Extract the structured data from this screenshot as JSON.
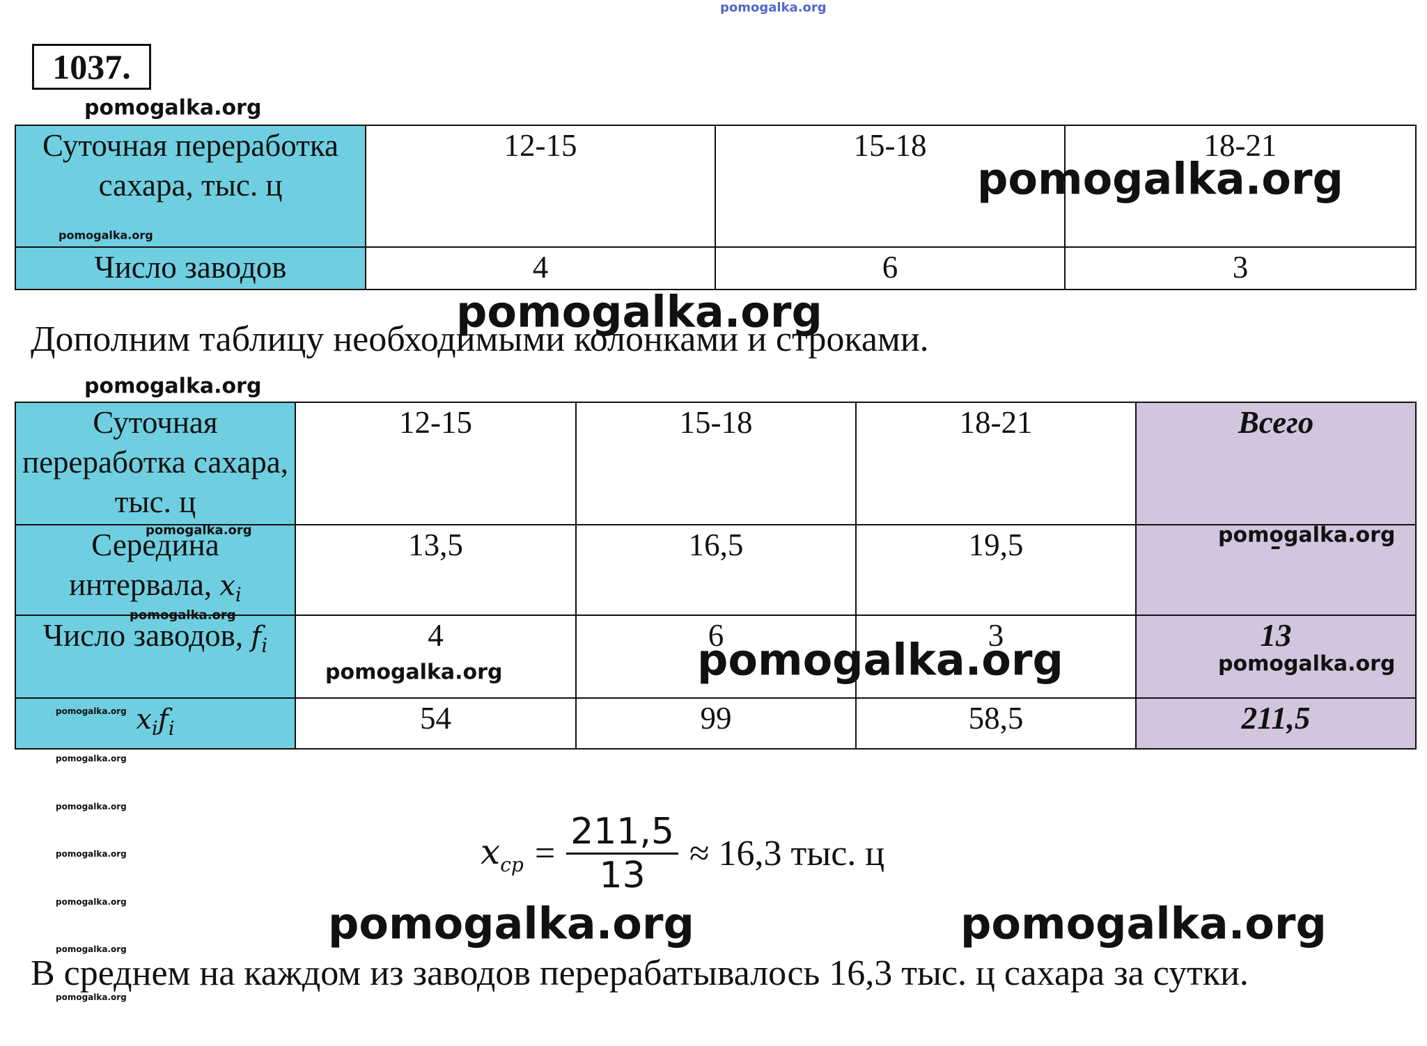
{
  "problem_number": "1037.",
  "table1": {
    "rows": [
      [
        {
          "text": "Суточная переработка сахара, тыс. ц"
        },
        "12-15",
        "15-18",
        "18-21"
      ],
      [
        {
          "text": "Число заводов"
        },
        "4",
        "6",
        "3"
      ]
    ]
  },
  "intro": "Дополним таблицу необходимыми колонками и строками.",
  "table2": {
    "rows": [
      [
        {
          "text": "Суточная переработка сахара, тыс. ц"
        },
        "12-15",
        "15-18",
        "18-21",
        "Всего"
      ],
      [
        {
          "text": "Середина интервала, ",
          "math": [
            [
              "x",
              "i"
            ]
          ]
        },
        "13,5",
        "16,5",
        "19,5",
        "-"
      ],
      [
        {
          "text": "Число заводов, ",
          "math": [
            [
              "f",
              "i"
            ]
          ]
        },
        "4",
        "6",
        "3",
        "13"
      ],
      [
        {
          "math": [
            [
              "x",
              "i"
            ],
            [
              "f",
              "i"
            ]
          ]
        },
        "54",
        "99",
        "58,5",
        "211,5"
      ]
    ]
  },
  "formula": {
    "var": "x",
    "sub": "ср",
    "eq": "=",
    "numerator": "211,5",
    "denominator": "13",
    "result": "≈ 16,3 тыс. ц"
  },
  "conclusion": "В среднем на каждом из заводов перерабатывалось 16,3 тыс. ц сахара за сутки.",
  "watermarks": [
    "pomogalka.org",
    "pomogalka.org",
    "pomogalka.org",
    "pomogalka.org",
    "pomogalka.org",
    "pomogalka.org",
    "pomogalka.org",
    "pomogalka.org",
    "pomogalka.org",
    "pomogalka.org",
    "pomogalka.org",
    "pomogalka.org",
    "pomogalka.org",
    "pomogalka.org",
    "pomogalka.org",
    "pomogalka.org",
    "pomogalka.org",
    "pomogalka.org",
    "pomogalka.org",
    "pomogalka.org",
    "pomogalka.org"
  ]
}
